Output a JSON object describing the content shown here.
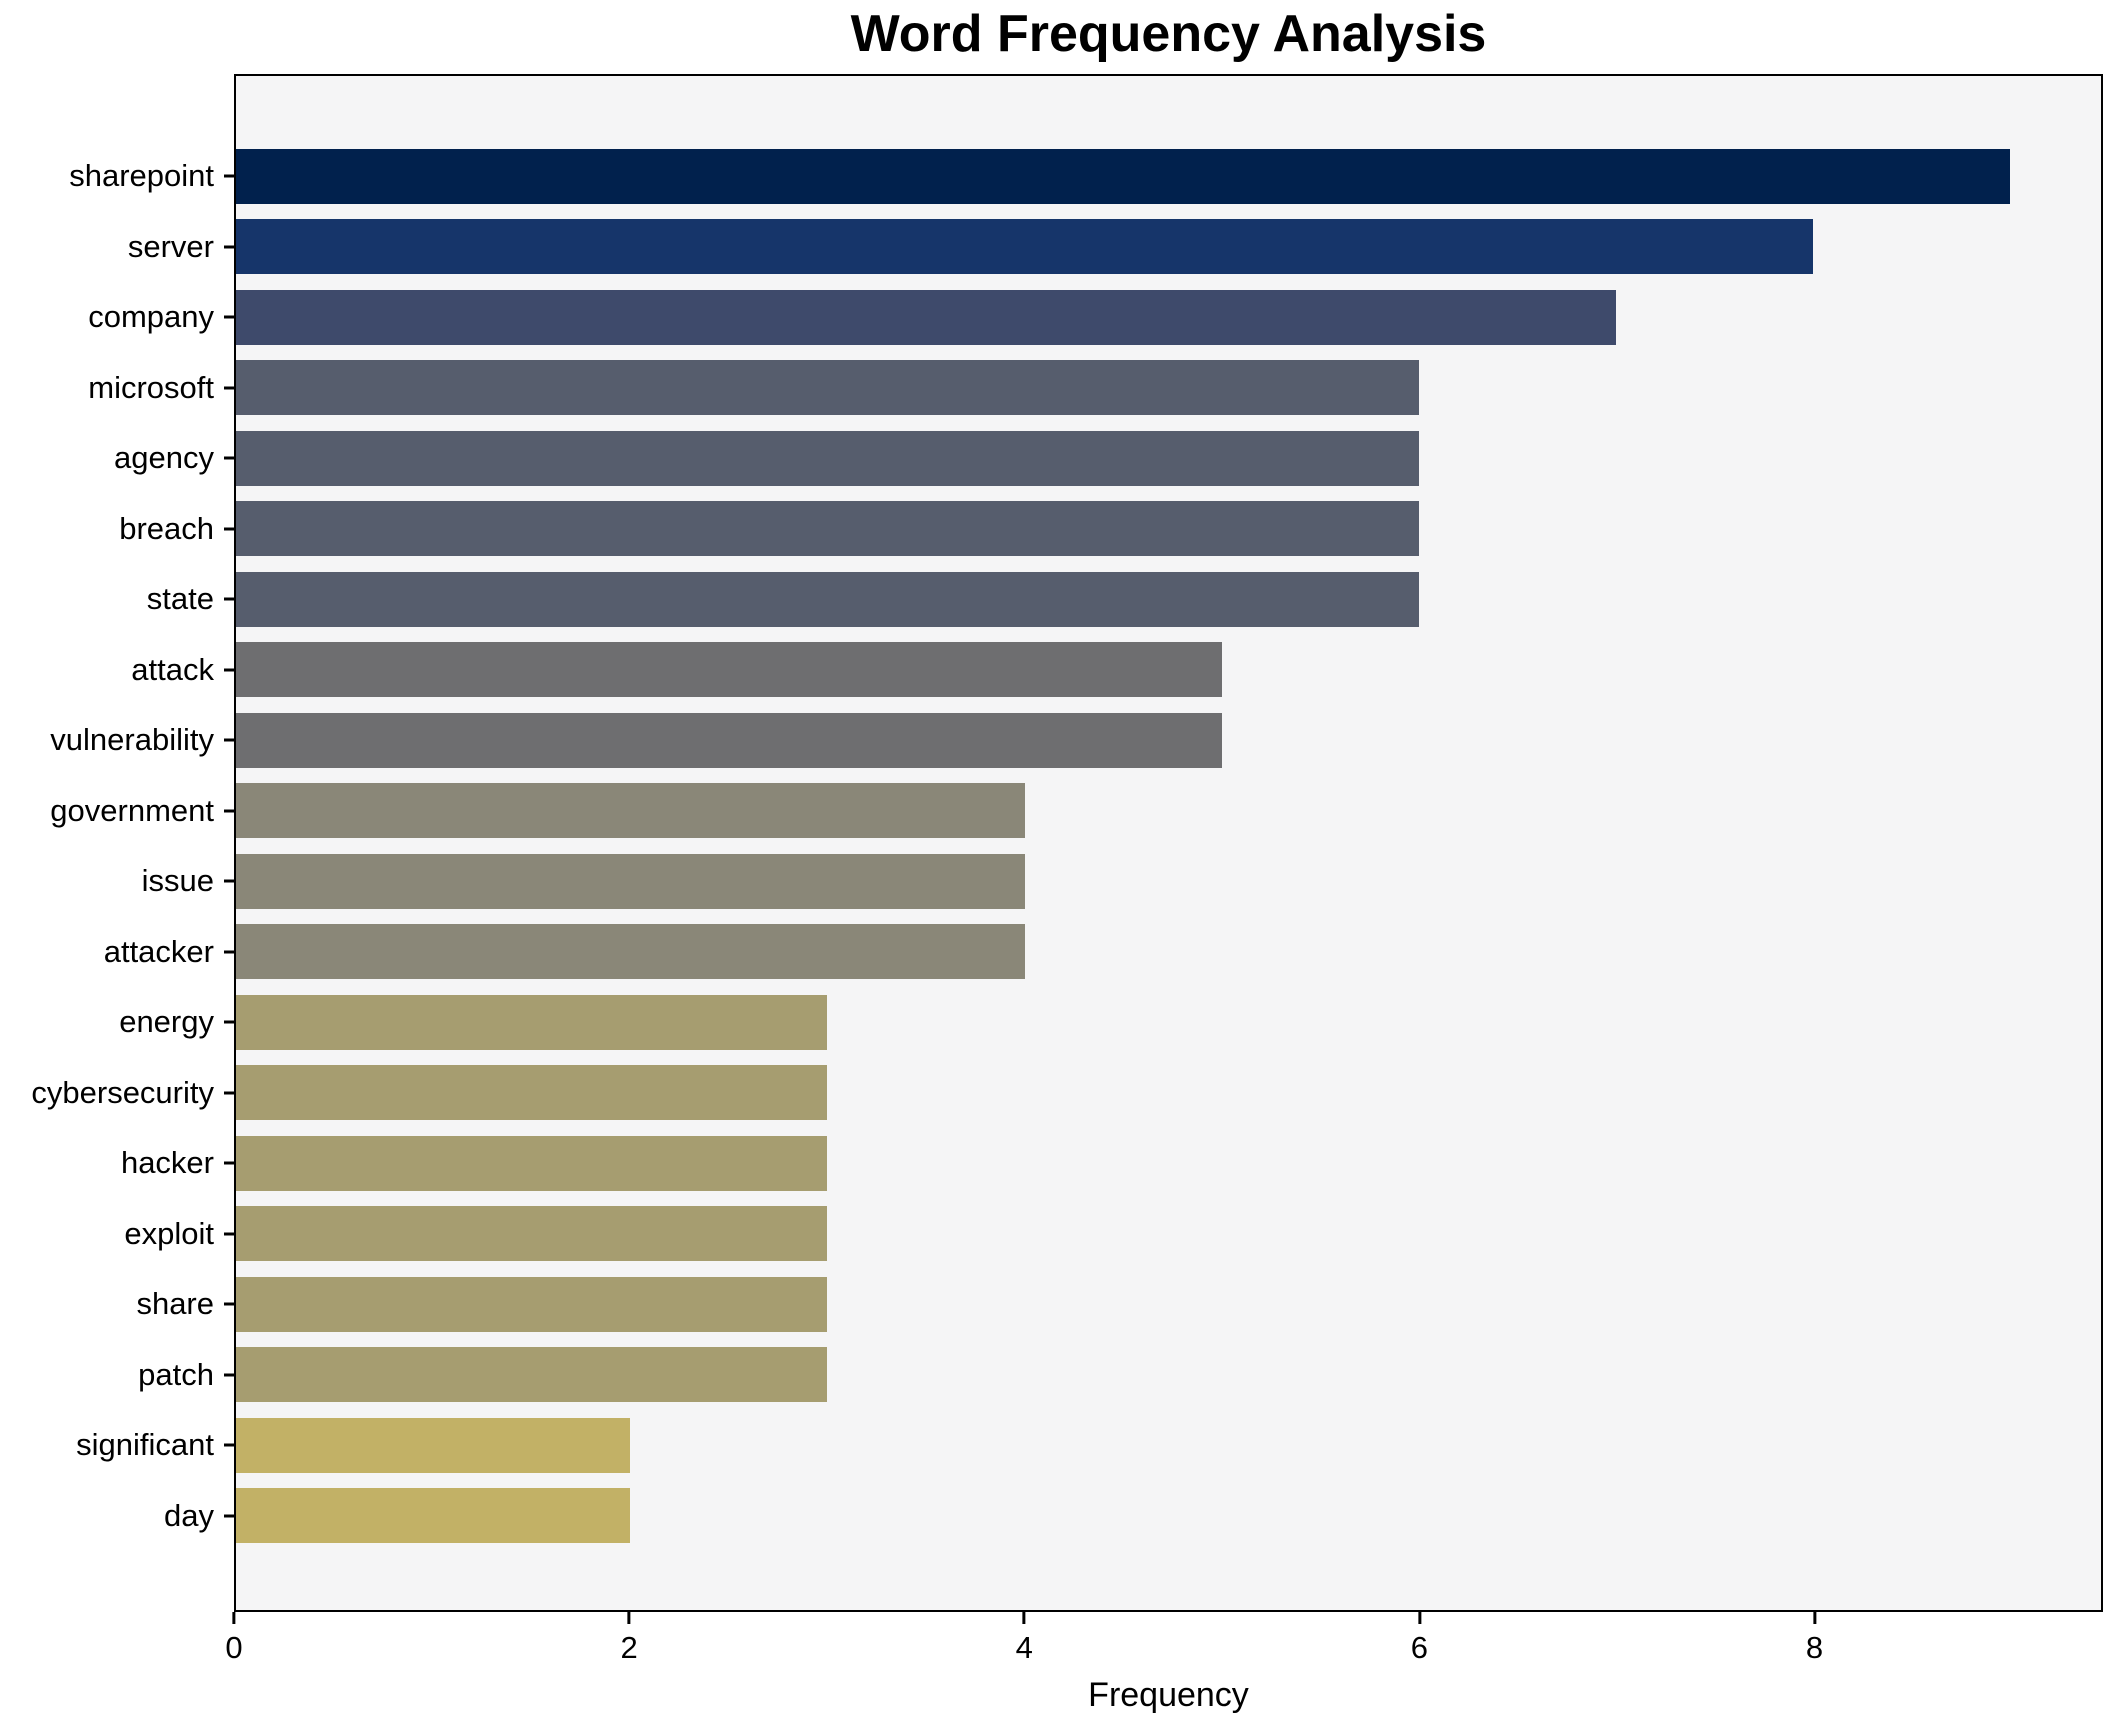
{
  "chart_data": {
    "type": "bar",
    "orientation": "horizontal",
    "title": "Word Frequency Analysis",
    "xlabel": "Frequency",
    "ylabel": "",
    "categories": [
      "sharepoint",
      "server",
      "company",
      "microsoft",
      "agency",
      "breach",
      "state",
      "attack",
      "vulnerability",
      "government",
      "issue",
      "attacker",
      "energy",
      "cybersecurity",
      "hacker",
      "exploit",
      "share",
      "patch",
      "significant",
      "day"
    ],
    "values": [
      9,
      8,
      7,
      6,
      6,
      6,
      6,
      5,
      5,
      4,
      4,
      4,
      3,
      3,
      3,
      3,
      3,
      3,
      2,
      2
    ],
    "bar_colors": [
      "#01214d",
      "#16356a",
      "#3e4a6b",
      "#565d6d",
      "#565d6d",
      "#565d6d",
      "#565d6d",
      "#6e6e70",
      "#6e6e70",
      "#8a8778",
      "#8a8778",
      "#8a8778",
      "#a69d70",
      "#a69d70",
      "#a69d70",
      "#a69d70",
      "#a69d70",
      "#a69d70",
      "#c2b166",
      "#c2b166"
    ],
    "x_ticks": [
      0,
      2,
      4,
      6,
      8
    ],
    "xlim": [
      0,
      9.46
    ],
    "grid": false,
    "legend_position": "none",
    "plot_background": "#f5f5f6",
    "figure_background": "#ffffff",
    "spine_color": "#000000"
  }
}
